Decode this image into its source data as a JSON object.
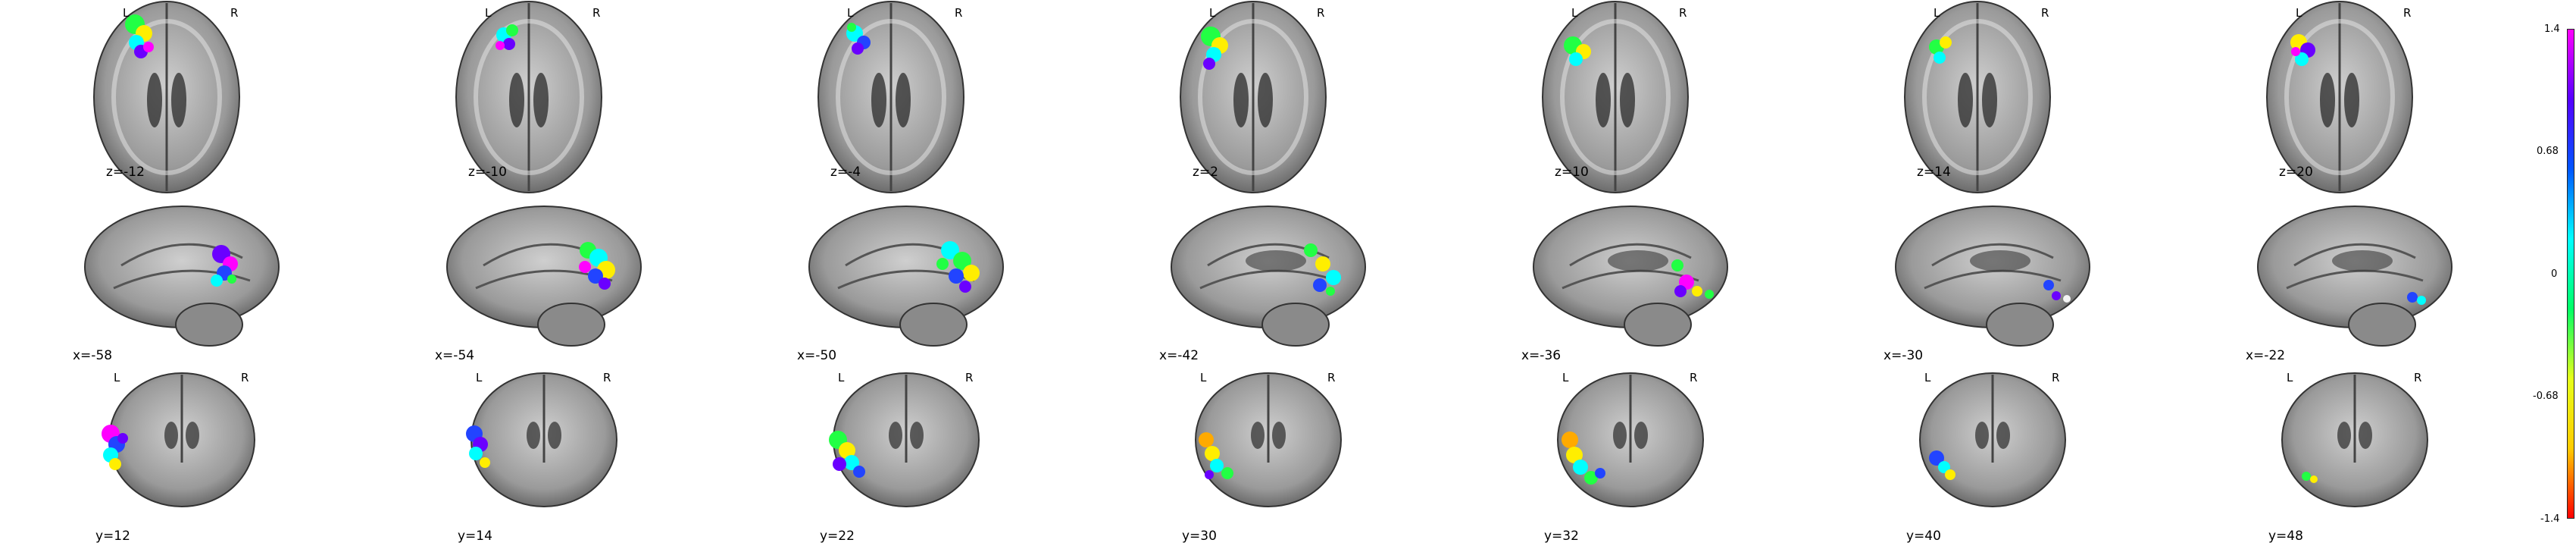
{
  "figure": {
    "rows": [
      {
        "view": "axial",
        "left_label": "L",
        "right_label": "R",
        "cuts": [
          "z=-12",
          "z=-10",
          "z=-4",
          "z=2",
          "z=10",
          "z=14",
          "z=20"
        ]
      },
      {
        "view": "sagittal",
        "cuts": [
          "x=-58",
          "x=-54",
          "x=-50",
          "x=-42",
          "x=-36",
          "x=-30",
          "x=-22"
        ]
      },
      {
        "view": "coronal",
        "left_label": "L",
        "right_label": "R",
        "cuts": [
          "y=12",
          "y=14",
          "y=22",
          "y=30",
          "y=32",
          "y=40",
          "y=48"
        ]
      }
    ]
  },
  "colorbar": {
    "ticks": [
      "1.4",
      "0.68",
      "0",
      "-0.68",
      "-1.4"
    ],
    "tick_values": [
      1.4,
      0.68,
      0,
      -0.68,
      -1.4
    ],
    "range": [
      -1.4,
      1.4
    ],
    "colors": [
      "#ff0000",
      "#ffcc00",
      "#e6ff1a",
      "#00ff66",
      "#00ffff",
      "#0055ff",
      "#5500ff",
      "#ff00ff"
    ]
  },
  "overlay_colors": {
    "magenta": "#ff00ff",
    "violet": "#6a00ff",
    "blue": "#2244ff",
    "cyan": "#00ffff",
    "green": "#22ff44",
    "yellow": "#ffee00",
    "orange": "#ffaa00",
    "white": "#f4f4f4"
  }
}
